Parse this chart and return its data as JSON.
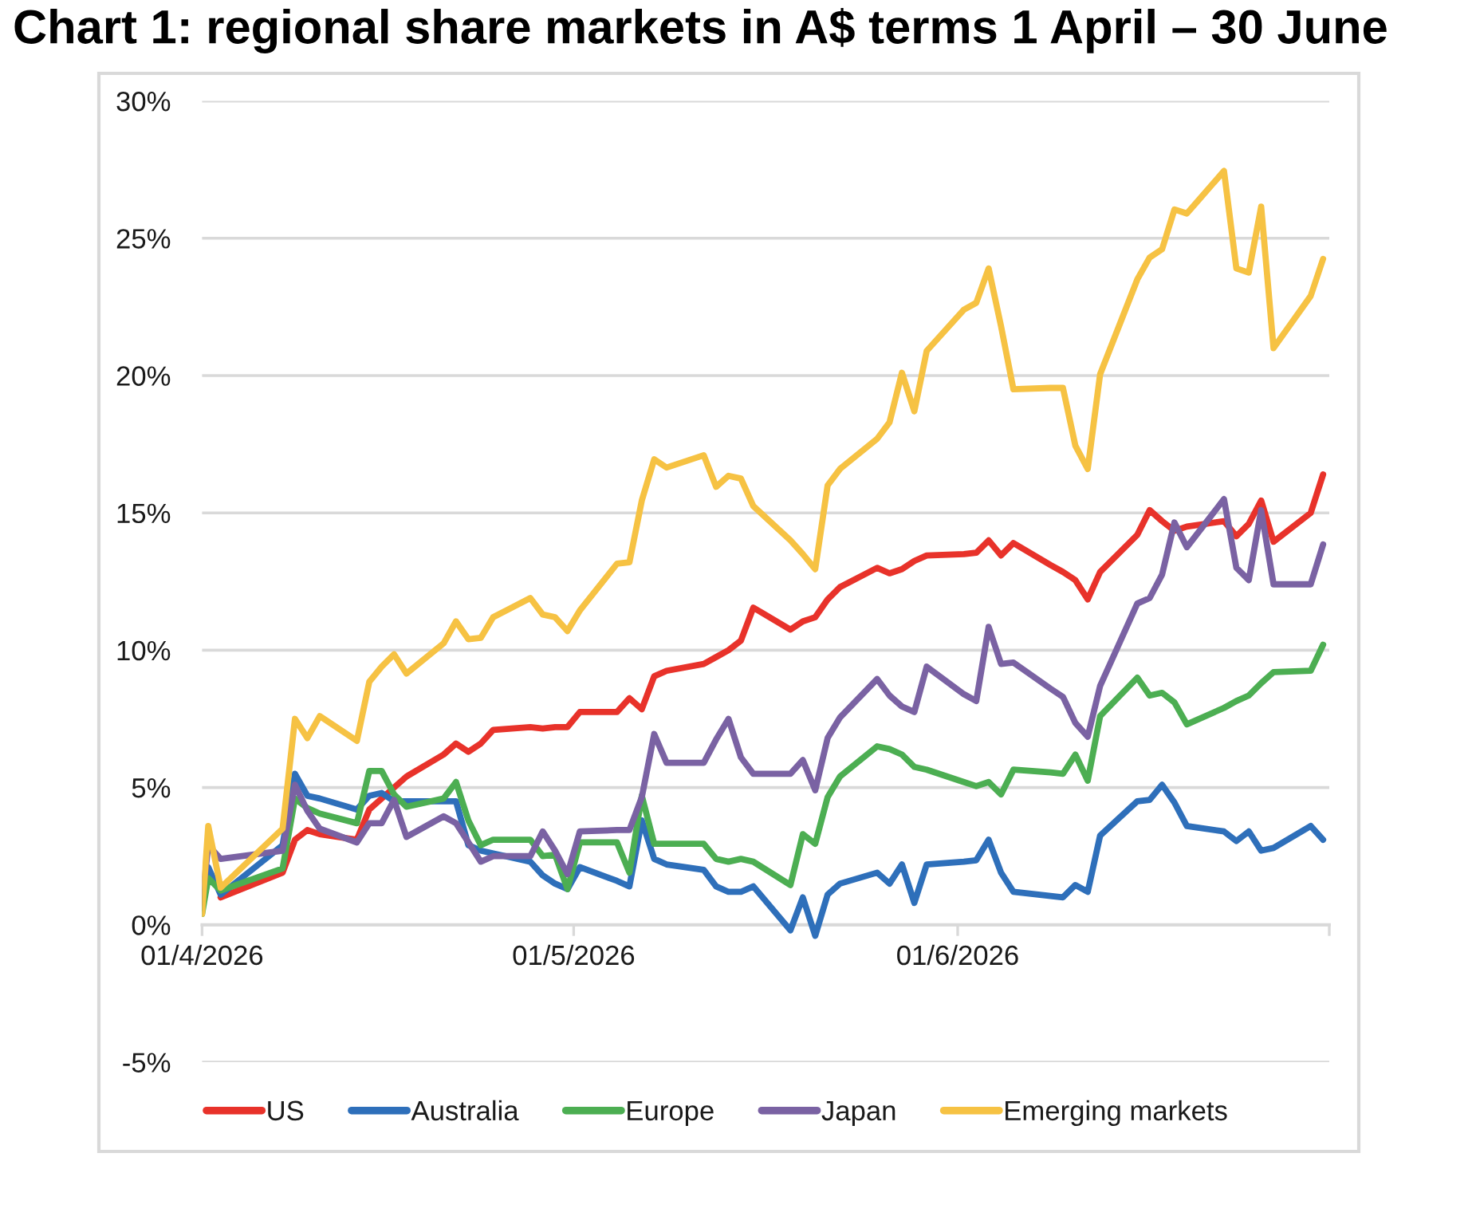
{
  "chart_data": {
    "type": "line",
    "title": "Chart 1: regional share markets in A$ terms 1 April – 30 June",
    "x": [
      "2026-04-01T00:00",
      "2026-04-01T12:00",
      "2026-04-02T12:00",
      "2026-04-07T12:00",
      "2026-04-08T12:00",
      "2026-04-09T12:00",
      "2026-04-10T12:00",
      "2026-04-13T12:00",
      "2026-04-14T12:00",
      "2026-04-15T12:00",
      "2026-04-16T12:00",
      "2026-04-17T12:00",
      "2026-04-20T12:00",
      "2026-04-21T12:00",
      "2026-04-22T12:00",
      "2026-04-23T12:00",
      "2026-04-24T12:00",
      "2026-04-27T12:00",
      "2026-04-28T12:00",
      "2026-04-29T12:00",
      "2026-04-30T12:00",
      "2026-05-01T12:00",
      "2026-05-04T12:00",
      "2026-05-05T12:00",
      "2026-05-06T12:00",
      "2026-05-07T12:00",
      "2026-05-08T12:00",
      "2026-05-11T12:00",
      "2026-05-12T12:00",
      "2026-05-13T12:00",
      "2026-05-14T12:00",
      "2026-05-15T12:00",
      "2026-05-18T12:00",
      "2026-05-19T12:00",
      "2026-05-20T12:00",
      "2026-05-21T12:00",
      "2026-05-22T12:00",
      "2026-05-25T12:00",
      "2026-05-26T12:00",
      "2026-05-27T12:00",
      "2026-05-28T12:00",
      "2026-05-29T12:00",
      "2026-06-01T12:00",
      "2026-06-02T12:00",
      "2026-06-03T12:00",
      "2026-06-04T12:00",
      "2026-06-05T12:00",
      "2026-06-08T12:00",
      "2026-06-09T12:00",
      "2026-06-10T12:00",
      "2026-06-11T12:00",
      "2026-06-12T12:00",
      "2026-06-15T12:00",
      "2026-06-16T12:00",
      "2026-06-17T12:00",
      "2026-06-18T12:00",
      "2026-06-19T12:00",
      "2026-06-22T12:00",
      "2026-06-23T12:00",
      "2026-06-24T12:00",
      "2026-06-25T12:00",
      "2026-06-26T12:00",
      "2026-06-29T12:00",
      "2026-06-30T12:00"
    ],
    "xlim": [
      "2026-04-01",
      "2026-07-01"
    ],
    "xticks": [
      {
        "value": "2026-04-01",
        "label": "01/4/2026"
      },
      {
        "value": "2026-05-01",
        "label": "01/5/2026"
      },
      {
        "value": "2026-06-01",
        "label": "01/6/2026"
      },
      {
        "value": "2026-07-01",
        "label": null
      }
    ],
    "ylim": [
      -5,
      30
    ],
    "yticks": [
      {
        "value": -5,
        "label": "-5%"
      },
      {
        "value": 0,
        "label": "0%"
      },
      {
        "value": 5,
        "label": "5%"
      },
      {
        "value": 10,
        "label": "10%"
      },
      {
        "value": 15,
        "label": "15%"
      },
      {
        "value": 20,
        "label": "20%"
      },
      {
        "value": 25,
        "label": "25%"
      },
      {
        "value": 30,
        "label": "30%"
      }
    ],
    "grid": "y",
    "legend": "bottom",
    "line_style": "solid",
    "series": [
      {
        "name": "US",
        "color": "#e8322a",
        "values": [
          null,
          null,
          1.0,
          1.9,
          3.1,
          3.45,
          3.3,
          3.1,
          4.2,
          4.6,
          5.0,
          5.4,
          6.2,
          6.6,
          6.3,
          6.6,
          7.1,
          7.2,
          7.15,
          7.2,
          7.2,
          7.75,
          7.75,
          8.25,
          7.85,
          9.05,
          9.25,
          9.5,
          9.75,
          10.0,
          10.35,
          11.55,
          10.75,
          11.05,
          11.2,
          11.85,
          12.3,
          13.0,
          12.8,
          12.95,
          13.25,
          13.45,
          13.5,
          13.55,
          14.0,
          13.45,
          13.9,
          13.1,
          12.85,
          12.55,
          11.85,
          12.85,
          14.2,
          15.1,
          14.7,
          14.35,
          14.5,
          14.7,
          14.15,
          14.6,
          15.45,
          13.95,
          15.0,
          16.4
        ]
      },
      {
        "name": "Australia",
        "color": "#2e6fba",
        "values": [
          0.6,
          2.1,
          1.1,
          2.9,
          5.5,
          4.7,
          4.6,
          4.2,
          4.7,
          4.8,
          4.5,
          4.5,
          4.5,
          4.5,
          2.9,
          2.7,
          2.6,
          2.3,
          1.8,
          1.5,
          1.3,
          2.1,
          1.6,
          1.4,
          3.8,
          2.4,
          2.2,
          2.0,
          1.4,
          1.2,
          1.2,
          1.4,
          -0.2,
          1.0,
          -0.4,
          1.1,
          1.5,
          1.9,
          1.5,
          2.2,
          0.8,
          2.2,
          2.3,
          2.35,
          3.1,
          1.9,
          1.2,
          1.05,
          1.0,
          1.45,
          1.2,
          3.25,
          4.5,
          4.55,
          5.1,
          4.45,
          3.6,
          3.4,
          3.05,
          3.4,
          2.7,
          2.8,
          3.6,
          3.1
        ]
      },
      {
        "name": "Europe",
        "color": "#4cae52",
        "values": [
          0.4,
          1.7,
          1.25,
          2.05,
          4.6,
          4.25,
          4.05,
          3.7,
          5.6,
          5.6,
          4.75,
          4.3,
          4.6,
          5.2,
          3.8,
          2.9,
          3.1,
          3.1,
          2.5,
          2.55,
          1.3,
          3.0,
          3.0,
          1.9,
          4.7,
          2.95,
          2.95,
          2.95,
          2.4,
          2.3,
          2.4,
          2.3,
          1.45,
          3.3,
          2.95,
          4.65,
          5.4,
          6.5,
          6.4,
          6.2,
          5.75,
          5.65,
          5.2,
          5.05,
          5.2,
          4.75,
          5.65,
          5.55,
          5.5,
          6.2,
          5.25,
          7.6,
          9.0,
          8.35,
          8.45,
          8.1,
          7.3,
          7.9,
          8.15,
          8.35,
          8.8,
          9.2,
          9.25,
          10.2
        ]
      },
      {
        "name": "Japan",
        "color": "#7a62a3",
        "values": [
          0.8,
          2.9,
          2.4,
          2.7,
          5.1,
          4.15,
          3.5,
          3.0,
          3.7,
          3.7,
          4.55,
          3.2,
          3.95,
          3.7,
          3.0,
          2.3,
          2.5,
          2.5,
          3.4,
          2.7,
          1.85,
          3.4,
          3.45,
          3.45,
          4.65,
          6.95,
          5.9,
          5.9,
          6.75,
          7.5,
          6.1,
          5.5,
          5.5,
          6.0,
          4.9,
          6.8,
          7.55,
          8.95,
          8.35,
          7.95,
          7.75,
          9.4,
          8.4,
          8.15,
          10.85,
          9.5,
          9.55,
          8.6,
          8.3,
          7.35,
          6.85,
          8.7,
          11.7,
          11.9,
          12.75,
          14.65,
          13.75,
          15.5,
          13.0,
          12.55,
          15.1,
          12.4,
          12.4,
          13.85
        ]
      },
      {
        "name": "Emerging markets",
        "color": "#f6c243",
        "values": [
          0.4,
          3.6,
          1.35,
          3.5,
          7.5,
          6.8,
          7.6,
          6.7,
          8.85,
          9.4,
          9.85,
          9.15,
          10.25,
          11.05,
          10.4,
          10.45,
          11.2,
          11.9,
          11.3,
          11.2,
          10.7,
          11.45,
          13.15,
          13.2,
          15.45,
          16.95,
          16.65,
          17.1,
          15.95,
          16.35,
          16.25,
          15.25,
          14.0,
          13.5,
          12.95,
          16.0,
          16.6,
          17.7,
          18.3,
          20.1,
          18.7,
          20.9,
          22.4,
          22.65,
          23.9,
          21.8,
          19.5,
          19.55,
          19.55,
          17.45,
          16.6,
          20.05,
          23.5,
          24.3,
          24.6,
          26.05,
          25.9,
          27.45,
          23.9,
          23.75,
          26.15,
          21.0,
          22.9,
          24.25
        ]
      }
    ]
  }
}
